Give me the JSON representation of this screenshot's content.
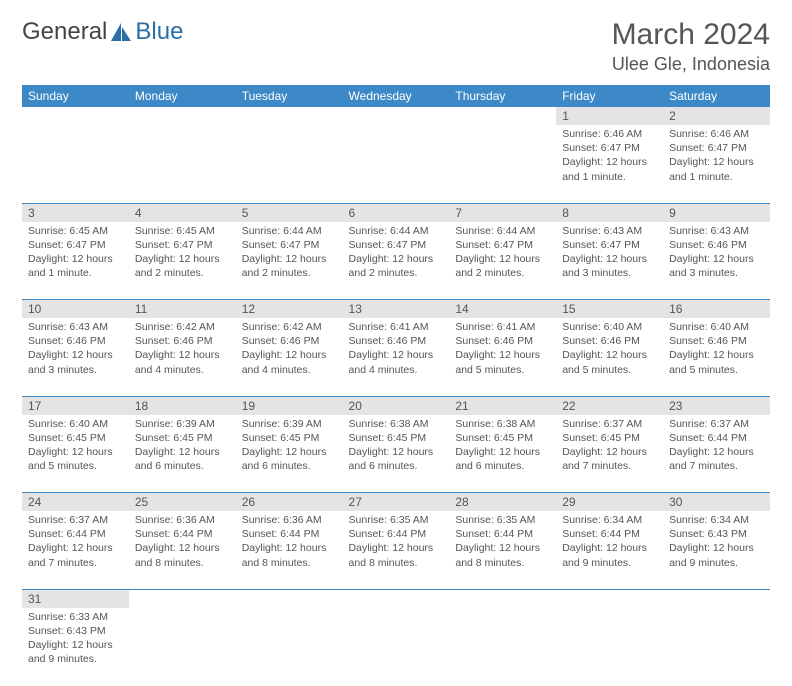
{
  "brand": {
    "part1": "General",
    "part2": "Blue"
  },
  "title": "March 2024",
  "location": "Ulee Gle, Indonesia",
  "colors": {
    "header_bg": "#3d88c7",
    "header_text": "#ffffff",
    "daynum_bg": "#e4e4e4",
    "text": "#555555",
    "rule": "#3d88c7",
    "logo_accent": "#2b6ea8"
  },
  "day_headers": [
    "Sunday",
    "Monday",
    "Tuesday",
    "Wednesday",
    "Thursday",
    "Friday",
    "Saturday"
  ],
  "weeks": [
    {
      "nums": [
        "",
        "",
        "",
        "",
        "",
        "1",
        "2"
      ],
      "cells": [
        null,
        null,
        null,
        null,
        null,
        {
          "sunrise": "Sunrise: 6:46 AM",
          "sunset": "Sunset: 6:47 PM",
          "day1": "Daylight: 12 hours",
          "day2": "and 1 minute."
        },
        {
          "sunrise": "Sunrise: 6:46 AM",
          "sunset": "Sunset: 6:47 PM",
          "day1": "Daylight: 12 hours",
          "day2": "and 1 minute."
        }
      ]
    },
    {
      "nums": [
        "3",
        "4",
        "5",
        "6",
        "7",
        "8",
        "9"
      ],
      "cells": [
        {
          "sunrise": "Sunrise: 6:45 AM",
          "sunset": "Sunset: 6:47 PM",
          "day1": "Daylight: 12 hours",
          "day2": "and 1 minute."
        },
        {
          "sunrise": "Sunrise: 6:45 AM",
          "sunset": "Sunset: 6:47 PM",
          "day1": "Daylight: 12 hours",
          "day2": "and 2 minutes."
        },
        {
          "sunrise": "Sunrise: 6:44 AM",
          "sunset": "Sunset: 6:47 PM",
          "day1": "Daylight: 12 hours",
          "day2": "and 2 minutes."
        },
        {
          "sunrise": "Sunrise: 6:44 AM",
          "sunset": "Sunset: 6:47 PM",
          "day1": "Daylight: 12 hours",
          "day2": "and 2 minutes."
        },
        {
          "sunrise": "Sunrise: 6:44 AM",
          "sunset": "Sunset: 6:47 PM",
          "day1": "Daylight: 12 hours",
          "day2": "and 2 minutes."
        },
        {
          "sunrise": "Sunrise: 6:43 AM",
          "sunset": "Sunset: 6:47 PM",
          "day1": "Daylight: 12 hours",
          "day2": "and 3 minutes."
        },
        {
          "sunrise": "Sunrise: 6:43 AM",
          "sunset": "Sunset: 6:46 PM",
          "day1": "Daylight: 12 hours",
          "day2": "and 3 minutes."
        }
      ]
    },
    {
      "nums": [
        "10",
        "11",
        "12",
        "13",
        "14",
        "15",
        "16"
      ],
      "cells": [
        {
          "sunrise": "Sunrise: 6:43 AM",
          "sunset": "Sunset: 6:46 PM",
          "day1": "Daylight: 12 hours",
          "day2": "and 3 minutes."
        },
        {
          "sunrise": "Sunrise: 6:42 AM",
          "sunset": "Sunset: 6:46 PM",
          "day1": "Daylight: 12 hours",
          "day2": "and 4 minutes."
        },
        {
          "sunrise": "Sunrise: 6:42 AM",
          "sunset": "Sunset: 6:46 PM",
          "day1": "Daylight: 12 hours",
          "day2": "and 4 minutes."
        },
        {
          "sunrise": "Sunrise: 6:41 AM",
          "sunset": "Sunset: 6:46 PM",
          "day1": "Daylight: 12 hours",
          "day2": "and 4 minutes."
        },
        {
          "sunrise": "Sunrise: 6:41 AM",
          "sunset": "Sunset: 6:46 PM",
          "day1": "Daylight: 12 hours",
          "day2": "and 5 minutes."
        },
        {
          "sunrise": "Sunrise: 6:40 AM",
          "sunset": "Sunset: 6:46 PM",
          "day1": "Daylight: 12 hours",
          "day2": "and 5 minutes."
        },
        {
          "sunrise": "Sunrise: 6:40 AM",
          "sunset": "Sunset: 6:46 PM",
          "day1": "Daylight: 12 hours",
          "day2": "and 5 minutes."
        }
      ]
    },
    {
      "nums": [
        "17",
        "18",
        "19",
        "20",
        "21",
        "22",
        "23"
      ],
      "cells": [
        {
          "sunrise": "Sunrise: 6:40 AM",
          "sunset": "Sunset: 6:45 PM",
          "day1": "Daylight: 12 hours",
          "day2": "and 5 minutes."
        },
        {
          "sunrise": "Sunrise: 6:39 AM",
          "sunset": "Sunset: 6:45 PM",
          "day1": "Daylight: 12 hours",
          "day2": "and 6 minutes."
        },
        {
          "sunrise": "Sunrise: 6:39 AM",
          "sunset": "Sunset: 6:45 PM",
          "day1": "Daylight: 12 hours",
          "day2": "and 6 minutes."
        },
        {
          "sunrise": "Sunrise: 6:38 AM",
          "sunset": "Sunset: 6:45 PM",
          "day1": "Daylight: 12 hours",
          "day2": "and 6 minutes."
        },
        {
          "sunrise": "Sunrise: 6:38 AM",
          "sunset": "Sunset: 6:45 PM",
          "day1": "Daylight: 12 hours",
          "day2": "and 6 minutes."
        },
        {
          "sunrise": "Sunrise: 6:37 AM",
          "sunset": "Sunset: 6:45 PM",
          "day1": "Daylight: 12 hours",
          "day2": "and 7 minutes."
        },
        {
          "sunrise": "Sunrise: 6:37 AM",
          "sunset": "Sunset: 6:44 PM",
          "day1": "Daylight: 12 hours",
          "day2": "and 7 minutes."
        }
      ]
    },
    {
      "nums": [
        "24",
        "25",
        "26",
        "27",
        "28",
        "29",
        "30"
      ],
      "cells": [
        {
          "sunrise": "Sunrise: 6:37 AM",
          "sunset": "Sunset: 6:44 PM",
          "day1": "Daylight: 12 hours",
          "day2": "and 7 minutes."
        },
        {
          "sunrise": "Sunrise: 6:36 AM",
          "sunset": "Sunset: 6:44 PM",
          "day1": "Daylight: 12 hours",
          "day2": "and 8 minutes."
        },
        {
          "sunrise": "Sunrise: 6:36 AM",
          "sunset": "Sunset: 6:44 PM",
          "day1": "Daylight: 12 hours",
          "day2": "and 8 minutes."
        },
        {
          "sunrise": "Sunrise: 6:35 AM",
          "sunset": "Sunset: 6:44 PM",
          "day1": "Daylight: 12 hours",
          "day2": "and 8 minutes."
        },
        {
          "sunrise": "Sunrise: 6:35 AM",
          "sunset": "Sunset: 6:44 PM",
          "day1": "Daylight: 12 hours",
          "day2": "and 8 minutes."
        },
        {
          "sunrise": "Sunrise: 6:34 AM",
          "sunset": "Sunset: 6:44 PM",
          "day1": "Daylight: 12 hours",
          "day2": "and 9 minutes."
        },
        {
          "sunrise": "Sunrise: 6:34 AM",
          "sunset": "Sunset: 6:43 PM",
          "day1": "Daylight: 12 hours",
          "day2": "and 9 minutes."
        }
      ]
    },
    {
      "nums": [
        "31",
        "",
        "",
        "",
        "",
        "",
        ""
      ],
      "cells": [
        {
          "sunrise": "Sunrise: 6:33 AM",
          "sunset": "Sunset: 6:43 PM",
          "day1": "Daylight: 12 hours",
          "day2": "and 9 minutes."
        },
        null,
        null,
        null,
        null,
        null,
        null
      ]
    }
  ]
}
